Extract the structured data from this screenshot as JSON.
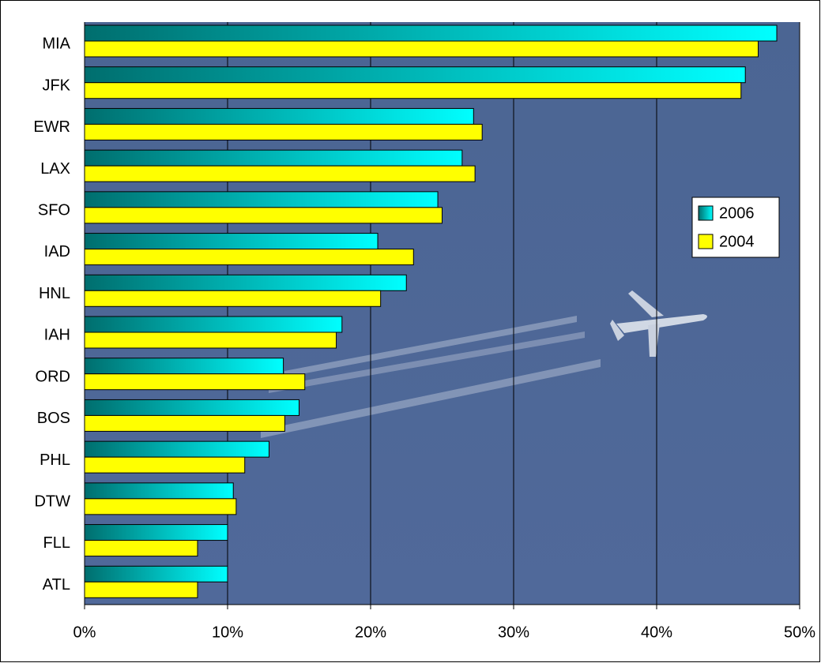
{
  "chart_data": {
    "type": "bar",
    "orientation": "horizontal",
    "categories": [
      "MIA",
      "JFK",
      "EWR",
      "LAX",
      "SFO",
      "IAD",
      "HNL",
      "IAH",
      "ORD",
      "BOS",
      "PHL",
      "DTW",
      "FLL",
      "ATL"
    ],
    "series": [
      {
        "name": "2006",
        "color": "#00ffff",
        "values": [
          48.4,
          46.2,
          27.2,
          26.4,
          24.7,
          20.5,
          22.5,
          18.0,
          13.9,
          15.0,
          12.9,
          10.4,
          10.0,
          10.0
        ]
      },
      {
        "name": "2004",
        "color": "#ffff00",
        "values": [
          47.1,
          45.9,
          27.8,
          27.3,
          25.0,
          23.0,
          20.7,
          17.6,
          15.4,
          14.0,
          11.2,
          10.6,
          7.9,
          7.9
        ]
      }
    ],
    "xlim": [
      0,
      50
    ],
    "xticks": [
      {
        "value": 0,
        "label": "0%"
      },
      {
        "value": 10,
        "label": "10%"
      },
      {
        "value": 20,
        "label": "20%"
      },
      {
        "value": 30,
        "label": "30%"
      },
      {
        "value": 40,
        "label": "40%"
      },
      {
        "value": 50,
        "label": "50%"
      }
    ],
    "grid": true,
    "legend": "right"
  }
}
